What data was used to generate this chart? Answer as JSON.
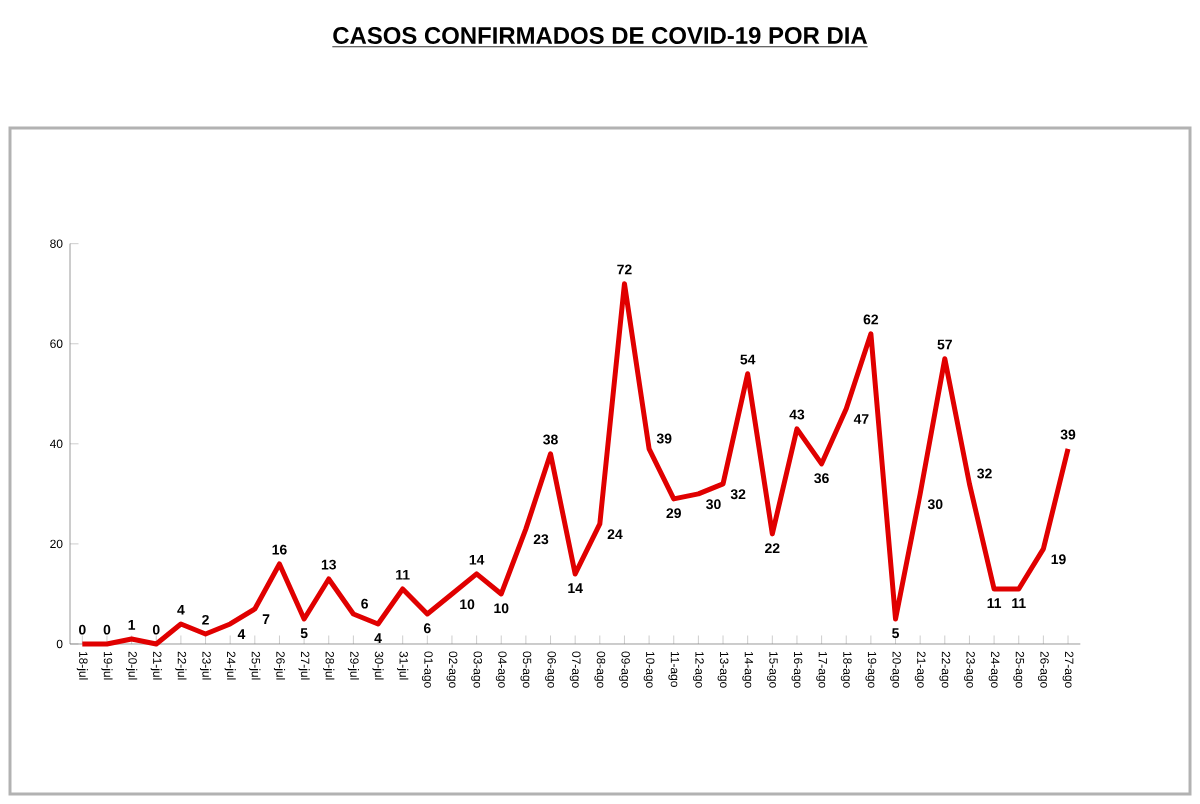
{
  "chart_data": {
    "type": "line",
    "title": "CASOS CONFIRMADOS DE COVID-19 POR DIA",
    "categories": [
      "18-jul",
      "19-jul",
      "20-jul",
      "21-jul",
      "22-jul",
      "23-jul",
      "24-jul",
      "25-jul",
      "26-jul",
      "27-jul",
      "28-jul",
      "29-jul",
      "30-jul",
      "31-jul",
      "01-ago",
      "02-ago",
      "03-ago",
      "04-ago",
      "05-ago",
      "06-ago",
      "07-ago",
      "08-ago",
      "09-ago",
      "10-ago",
      "11-ago",
      "12-ago",
      "13-ago",
      "14-ago",
      "15-ago",
      "16-ago",
      "17-ago",
      "18-ago",
      "19-ago",
      "20-ago",
      "21-ago",
      "22-ago",
      "23-ago",
      "24-ago",
      "25-ago",
      "26-ago",
      "27-ago"
    ],
    "values": [
      0,
      0,
      1,
      0,
      4,
      2,
      4,
      7,
      16,
      5,
      13,
      6,
      4,
      11,
      6,
      10,
      14,
      10,
      23,
      38,
      14,
      24,
      72,
      39,
      29,
      30,
      32,
      54,
      22,
      43,
      36,
      47,
      62,
      5,
      30,
      57,
      32,
      11,
      11,
      19,
      39
    ],
    "color": "#e00000",
    "ylim": [
      0,
      80
    ],
    "yticks": [
      0,
      20,
      40,
      60,
      80
    ],
    "data_labels": true,
    "marker": "none",
    "line_style": "solid"
  }
}
